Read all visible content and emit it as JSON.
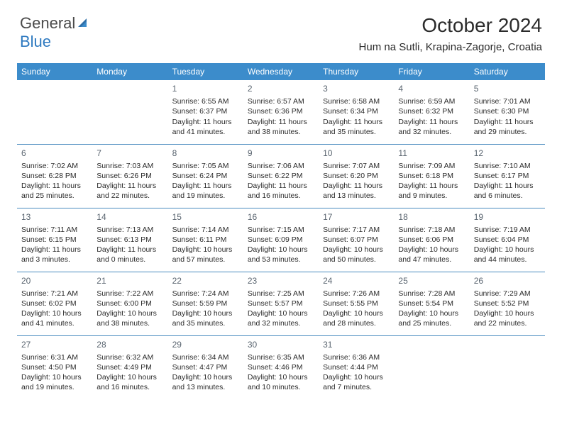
{
  "logo": {
    "text1": "General",
    "text2": "Blue"
  },
  "title": "October 2024",
  "location": "Hum na Sutli, Krapina-Zagorje, Croatia",
  "colors": {
    "header_bg": "#3c8ccb",
    "header_text": "#ffffff",
    "cell_border": "#4a8cbf",
    "daynum_color": "#5a6570",
    "text_color": "#2b2b2b",
    "logo_gray": "#4a4a4a",
    "logo_blue": "#2f7ac0"
  },
  "weekdays": [
    "Sunday",
    "Monday",
    "Tuesday",
    "Wednesday",
    "Thursday",
    "Friday",
    "Saturday"
  ],
  "weeks": [
    [
      {
        "day": "",
        "info": ""
      },
      {
        "day": "",
        "info": ""
      },
      {
        "day": "1",
        "info": "Sunrise: 6:55 AM\nSunset: 6:37 PM\nDaylight: 11 hours and 41 minutes."
      },
      {
        "day": "2",
        "info": "Sunrise: 6:57 AM\nSunset: 6:36 PM\nDaylight: 11 hours and 38 minutes."
      },
      {
        "day": "3",
        "info": "Sunrise: 6:58 AM\nSunset: 6:34 PM\nDaylight: 11 hours and 35 minutes."
      },
      {
        "day": "4",
        "info": "Sunrise: 6:59 AM\nSunset: 6:32 PM\nDaylight: 11 hours and 32 minutes."
      },
      {
        "day": "5",
        "info": "Sunrise: 7:01 AM\nSunset: 6:30 PM\nDaylight: 11 hours and 29 minutes."
      }
    ],
    [
      {
        "day": "6",
        "info": "Sunrise: 7:02 AM\nSunset: 6:28 PM\nDaylight: 11 hours and 25 minutes."
      },
      {
        "day": "7",
        "info": "Sunrise: 7:03 AM\nSunset: 6:26 PM\nDaylight: 11 hours and 22 minutes."
      },
      {
        "day": "8",
        "info": "Sunrise: 7:05 AM\nSunset: 6:24 PM\nDaylight: 11 hours and 19 minutes."
      },
      {
        "day": "9",
        "info": "Sunrise: 7:06 AM\nSunset: 6:22 PM\nDaylight: 11 hours and 16 minutes."
      },
      {
        "day": "10",
        "info": "Sunrise: 7:07 AM\nSunset: 6:20 PM\nDaylight: 11 hours and 13 minutes."
      },
      {
        "day": "11",
        "info": "Sunrise: 7:09 AM\nSunset: 6:18 PM\nDaylight: 11 hours and 9 minutes."
      },
      {
        "day": "12",
        "info": "Sunrise: 7:10 AM\nSunset: 6:17 PM\nDaylight: 11 hours and 6 minutes."
      }
    ],
    [
      {
        "day": "13",
        "info": "Sunrise: 7:11 AM\nSunset: 6:15 PM\nDaylight: 11 hours and 3 minutes."
      },
      {
        "day": "14",
        "info": "Sunrise: 7:13 AM\nSunset: 6:13 PM\nDaylight: 11 hours and 0 minutes."
      },
      {
        "day": "15",
        "info": "Sunrise: 7:14 AM\nSunset: 6:11 PM\nDaylight: 10 hours and 57 minutes."
      },
      {
        "day": "16",
        "info": "Sunrise: 7:15 AM\nSunset: 6:09 PM\nDaylight: 10 hours and 53 minutes."
      },
      {
        "day": "17",
        "info": "Sunrise: 7:17 AM\nSunset: 6:07 PM\nDaylight: 10 hours and 50 minutes."
      },
      {
        "day": "18",
        "info": "Sunrise: 7:18 AM\nSunset: 6:06 PM\nDaylight: 10 hours and 47 minutes."
      },
      {
        "day": "19",
        "info": "Sunrise: 7:19 AM\nSunset: 6:04 PM\nDaylight: 10 hours and 44 minutes."
      }
    ],
    [
      {
        "day": "20",
        "info": "Sunrise: 7:21 AM\nSunset: 6:02 PM\nDaylight: 10 hours and 41 minutes."
      },
      {
        "day": "21",
        "info": "Sunrise: 7:22 AM\nSunset: 6:00 PM\nDaylight: 10 hours and 38 minutes."
      },
      {
        "day": "22",
        "info": "Sunrise: 7:24 AM\nSunset: 5:59 PM\nDaylight: 10 hours and 35 minutes."
      },
      {
        "day": "23",
        "info": "Sunrise: 7:25 AM\nSunset: 5:57 PM\nDaylight: 10 hours and 32 minutes."
      },
      {
        "day": "24",
        "info": "Sunrise: 7:26 AM\nSunset: 5:55 PM\nDaylight: 10 hours and 28 minutes."
      },
      {
        "day": "25",
        "info": "Sunrise: 7:28 AM\nSunset: 5:54 PM\nDaylight: 10 hours and 25 minutes."
      },
      {
        "day": "26",
        "info": "Sunrise: 7:29 AM\nSunset: 5:52 PM\nDaylight: 10 hours and 22 minutes."
      }
    ],
    [
      {
        "day": "27",
        "info": "Sunrise: 6:31 AM\nSunset: 4:50 PM\nDaylight: 10 hours and 19 minutes."
      },
      {
        "day": "28",
        "info": "Sunrise: 6:32 AM\nSunset: 4:49 PM\nDaylight: 10 hours and 16 minutes."
      },
      {
        "day": "29",
        "info": "Sunrise: 6:34 AM\nSunset: 4:47 PM\nDaylight: 10 hours and 13 minutes."
      },
      {
        "day": "30",
        "info": "Sunrise: 6:35 AM\nSunset: 4:46 PM\nDaylight: 10 hours and 10 minutes."
      },
      {
        "day": "31",
        "info": "Sunrise: 6:36 AM\nSunset: 4:44 PM\nDaylight: 10 hours and 7 minutes."
      },
      {
        "day": "",
        "info": ""
      },
      {
        "day": "",
        "info": ""
      }
    ]
  ]
}
